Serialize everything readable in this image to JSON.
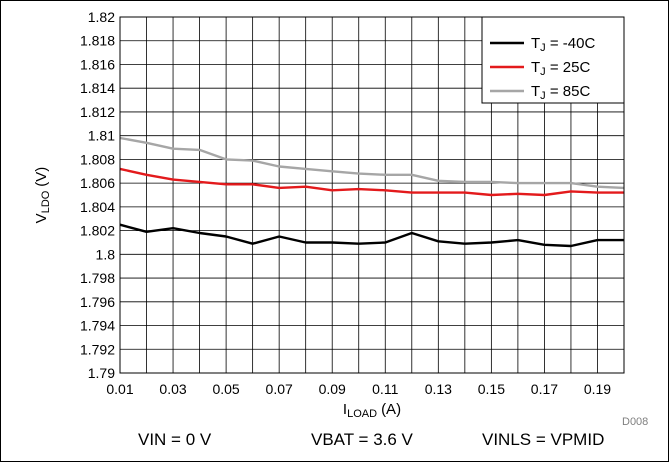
{
  "chart_data": {
    "type": "line",
    "title": "",
    "xlabel": {
      "main": "I",
      "sub": "LOAD",
      "unit": "(A)"
    },
    "ylabel": {
      "main": "V",
      "sub": "LDO",
      "unit": "(V)"
    },
    "xlim": [
      0.01,
      0.2
    ],
    "ylim": [
      1.79,
      1.82
    ],
    "x_ticks": [
      "0.01",
      "0.03",
      "0.05",
      "0.07",
      "0.09",
      "0.11",
      "0.13",
      "0.15",
      "0.17",
      "0.19"
    ],
    "y_ticks": [
      "1.82",
      "1.818",
      "1.816",
      "1.814",
      "1.812",
      "1.81",
      "1.808",
      "1.806",
      "1.804",
      "1.802",
      "1.8",
      "1.798",
      "1.796",
      "1.794",
      "1.792",
      "1.79"
    ],
    "grid": true,
    "legend_position": "top-right",
    "x": [
      0.01,
      0.02,
      0.03,
      0.04,
      0.05,
      0.06,
      0.07,
      0.08,
      0.09,
      0.1,
      0.11,
      0.12,
      0.13,
      0.14,
      0.15,
      0.16,
      0.17,
      0.18,
      0.19,
      0.2
    ],
    "series": [
      {
        "name": {
          "main": "T",
          "sub": "J",
          "rest": " = -40C"
        },
        "color": "#000000",
        "values": [
          1.8025,
          1.8019,
          1.8022,
          1.8018,
          1.8015,
          1.8009,
          1.8015,
          1.801,
          1.801,
          1.8009,
          1.801,
          1.8018,
          1.8011,
          1.8009,
          1.801,
          1.8012,
          1.8008,
          1.8007,
          1.8012,
          1.8012
        ]
      },
      {
        "name": {
          "main": "T",
          "sub": "J",
          "rest": " = 25C"
        },
        "color": "#e31a1c",
        "values": [
          1.8072,
          1.8067,
          1.8063,
          1.8061,
          1.8059,
          1.8059,
          1.8056,
          1.8057,
          1.8054,
          1.8055,
          1.8054,
          1.8052,
          1.8052,
          1.8052,
          1.805,
          1.8051,
          1.805,
          1.8053,
          1.8052,
          1.8052
        ]
      },
      {
        "name": {
          "main": "T",
          "sub": "J",
          "rest": " = 85C"
        },
        "color": "#a6a6a6",
        "values": [
          1.8098,
          1.8094,
          1.8089,
          1.8088,
          1.808,
          1.8079,
          1.8074,
          1.8072,
          1.807,
          1.8068,
          1.8067,
          1.8067,
          1.8062,
          1.8061,
          1.8061,
          1.806,
          1.806,
          1.806,
          1.8057,
          1.8056
        ]
      }
    ]
  },
  "figure_id": "D008",
  "conditions": [
    "VIN = 0 V",
    "VBAT = 3.6 V",
    "VINLS = VPMID"
  ]
}
